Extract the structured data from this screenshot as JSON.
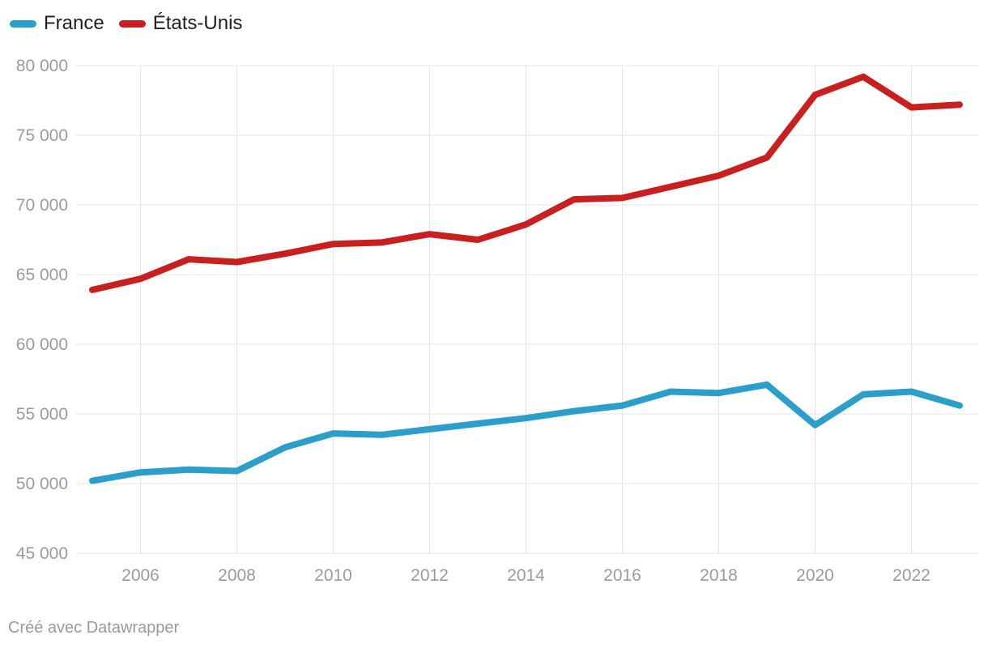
{
  "legend": {
    "items": [
      {
        "label": "France",
        "color": "#2b9fc9"
      },
      {
        "label": "États-Unis",
        "color": "#c7201e"
      }
    ]
  },
  "footer": {
    "attribution": "Créé avec Datawrapper"
  },
  "colors": {
    "background": "#ffffff",
    "grid": "#e4e4e4",
    "axis_text": "#9b9b9b",
    "legend_text": "#1f1f1f",
    "footer_text": "#9a9a9a",
    "france_line": "#2b9fc9",
    "us_line": "#c7201e"
  },
  "chart_data": {
    "type": "line",
    "title": "",
    "xlabel": "",
    "ylabel": "",
    "grid": true,
    "legend_position": "top-left",
    "xlim": [
      2005,
      2023
    ],
    "ylim": [
      45000,
      80000
    ],
    "x": [
      2005,
      2006,
      2007,
      2008,
      2009,
      2010,
      2011,
      2012,
      2013,
      2014,
      2015,
      2016,
      2017,
      2018,
      2019,
      2020,
      2021,
      2022,
      2023
    ],
    "x_ticks": [
      2006,
      2008,
      2010,
      2012,
      2014,
      2016,
      2018,
      2020,
      2022
    ],
    "x_tick_labels": [
      "2006",
      "2008",
      "2010",
      "2012",
      "2014",
      "2016",
      "2018",
      "2020",
      "2022"
    ],
    "y_ticks": [
      45000,
      50000,
      55000,
      60000,
      65000,
      70000,
      75000,
      80000
    ],
    "y_tick_labels": [
      "45 000",
      "50 000",
      "55 000",
      "60 000",
      "65 000",
      "70 000",
      "75 000",
      "80 000"
    ],
    "series": [
      {
        "name": "France",
        "color": "#2b9fc9",
        "values": [
          50200,
          50800,
          51000,
          50900,
          52600,
          53600,
          53500,
          53900,
          54300,
          54700,
          55200,
          55600,
          56600,
          56500,
          57100,
          54200,
          56400,
          56600,
          55600
        ]
      },
      {
        "name": "États-Unis",
        "color": "#c7201e",
        "values": [
          63900,
          64700,
          66100,
          65900,
          66500,
          67200,
          67300,
          67900,
          67500,
          68600,
          70400,
          70500,
          71300,
          72100,
          73400,
          77900,
          79200,
          77000,
          77200
        ]
      }
    ]
  }
}
